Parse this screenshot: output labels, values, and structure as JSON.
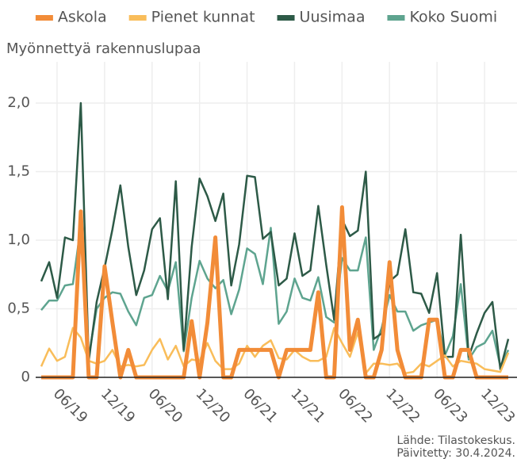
{
  "chart_data": {
    "type": "line",
    "subtitle": "Myönnettyä rakennuslupaa",
    "source": "Lähde: Tilastokeskus.",
    "updated": "Päivitetty: 30.4.2024.",
    "x": [
      "2019-04",
      "2019-05",
      "2019-06",
      "2019-07",
      "2019-08",
      "2019-09",
      "2019-10",
      "2019-11",
      "2019-12",
      "2020-01",
      "2020-02",
      "2020-03",
      "2020-04",
      "2020-05",
      "2020-06",
      "2020-07",
      "2020-08",
      "2020-09",
      "2020-10",
      "2020-11",
      "2020-12",
      "2021-01",
      "2021-02",
      "2021-03",
      "2021-04",
      "2021-05",
      "2021-06",
      "2021-07",
      "2021-08",
      "2021-09",
      "2021-10",
      "2021-11",
      "2021-12",
      "2022-01",
      "2022-02",
      "2022-03",
      "2022-04",
      "2022-05",
      "2022-06",
      "2022-07",
      "2022-08",
      "2022-09",
      "2022-10",
      "2022-11",
      "2022-12",
      "2023-01",
      "2023-02",
      "2023-03",
      "2023-04",
      "2023-05",
      "2023-06",
      "2023-07",
      "2023-08",
      "2023-09",
      "2023-10",
      "2023-11",
      "2023-12",
      "2024-01",
      "2024-02",
      "2024-03"
    ],
    "xlim": [
      "2019-04",
      "2024-03"
    ],
    "xticks": [
      {
        "value": "2019-06",
        "label": "06/19"
      },
      {
        "value": "2019-12",
        "label": "12/19"
      },
      {
        "value": "2020-06",
        "label": "06/20"
      },
      {
        "value": "2020-12",
        "label": "12/20"
      },
      {
        "value": "2021-06",
        "label": "06/21"
      },
      {
        "value": "2021-12",
        "label": "12/21"
      },
      {
        "value": "2022-06",
        "label": "06/22"
      },
      {
        "value": "2022-12",
        "label": "12/22"
      },
      {
        "value": "2023-06",
        "label": "06/23"
      },
      {
        "value": "2023-12",
        "label": "12/23"
      }
    ],
    "ylim": [
      0,
      2.0
    ],
    "yticks": [
      0,
      {
        "value": 0.5,
        "label": "0,5"
      },
      {
        "value": 1.0,
        "label": "1,0"
      },
      {
        "value": 1.5,
        "label": "1,5"
      },
      {
        "value": 2.0,
        "label": "2,0"
      }
    ],
    "grid": true,
    "legend": "top",
    "series": [
      {
        "name": "Askola",
        "color": "#f28c38",
        "values": [
          0,
          0,
          0,
          0,
          0,
          1.21,
          0,
          0,
          0.81,
          0.4,
          0,
          0.2,
          0,
          0,
          0,
          0,
          0,
          0,
          0,
          0.41,
          0,
          0.4,
          1.02,
          0,
          0,
          0.2,
          0.2,
          0.2,
          0.2,
          0.2,
          0,
          0.2,
          0.2,
          0.2,
          0.2,
          0.62,
          0,
          0,
          1.24,
          0.2,
          0.42,
          0,
          0,
          0.2,
          0.84,
          0.2,
          0,
          0,
          0,
          0.42,
          0.42,
          0,
          0,
          0.2,
          0.2,
          0,
          0,
          0,
          0,
          0
        ]
      },
      {
        "name": "Pienet kunnat",
        "color": "#f9bd5a",
        "values": [
          0.08,
          0.21,
          0.12,
          0.15,
          0.36,
          0.29,
          0.12,
          0.1,
          0.12,
          0.2,
          0.08,
          0.09,
          0.08,
          0.09,
          0.2,
          0.28,
          0.13,
          0.23,
          0.08,
          0.13,
          0.12,
          0.25,
          0.12,
          0.06,
          0.06,
          0.1,
          0.23,
          0.15,
          0.23,
          0.27,
          0.14,
          0.13,
          0.2,
          0.15,
          0.12,
          0.12,
          0.15,
          0.36,
          0.25,
          0.15,
          0.33,
          0.03,
          0.1,
          0.1,
          0.09,
          0.1,
          0.03,
          0.04,
          0.1,
          0.08,
          0.12,
          0.16,
          0.08,
          0.12,
          0.11,
          0.1,
          0.06,
          0.05,
          0.04,
          0.18
        ]
      },
      {
        "name": "Uusimaa",
        "color": "#2d5a47",
        "values": [
          0.7,
          0.84,
          0.58,
          1.02,
          1.0,
          2.0,
          0.12,
          0.55,
          0.8,
          1.08,
          1.4,
          0.95,
          0.6,
          0.78,
          1.08,
          1.16,
          0.57,
          1.43,
          0.2,
          0.95,
          1.45,
          1.32,
          1.14,
          1.34,
          0.67,
          0.97,
          1.47,
          1.46,
          1.01,
          1.06,
          0.67,
          0.72,
          1.05,
          0.74,
          0.78,
          1.25,
          0.82,
          0.42,
          1.15,
          1.03,
          1.07,
          1.5,
          0.28,
          0.32,
          0.7,
          0.75,
          1.08,
          0.62,
          0.61,
          0.47,
          0.76,
          0.15,
          0.15,
          1.04,
          0.15,
          0.32,
          0.47,
          0.55,
          0.06,
          0.28
        ]
      },
      {
        "name": "Koko Suomi",
        "color": "#5ea48f",
        "values": [
          0.49,
          0.56,
          0.56,
          0.67,
          0.68,
          1.1,
          0.15,
          0.5,
          0.58,
          0.62,
          0.61,
          0.48,
          0.38,
          0.58,
          0.6,
          0.74,
          0.63,
          0.84,
          0.19,
          0.58,
          0.85,
          0.72,
          0.65,
          0.71,
          0.46,
          0.64,
          0.94,
          0.9,
          0.68,
          1.09,
          0.39,
          0.48,
          0.72,
          0.58,
          0.56,
          0.73,
          0.44,
          0.4,
          0.87,
          0.78,
          0.78,
          1.02,
          0.2,
          0.36,
          0.6,
          0.48,
          0.48,
          0.34,
          0.38,
          0.4,
          0.42,
          0.16,
          0.3,
          0.68,
          0.13,
          0.22,
          0.25,
          0.34,
          0.08,
          0.2
        ]
      }
    ]
  }
}
